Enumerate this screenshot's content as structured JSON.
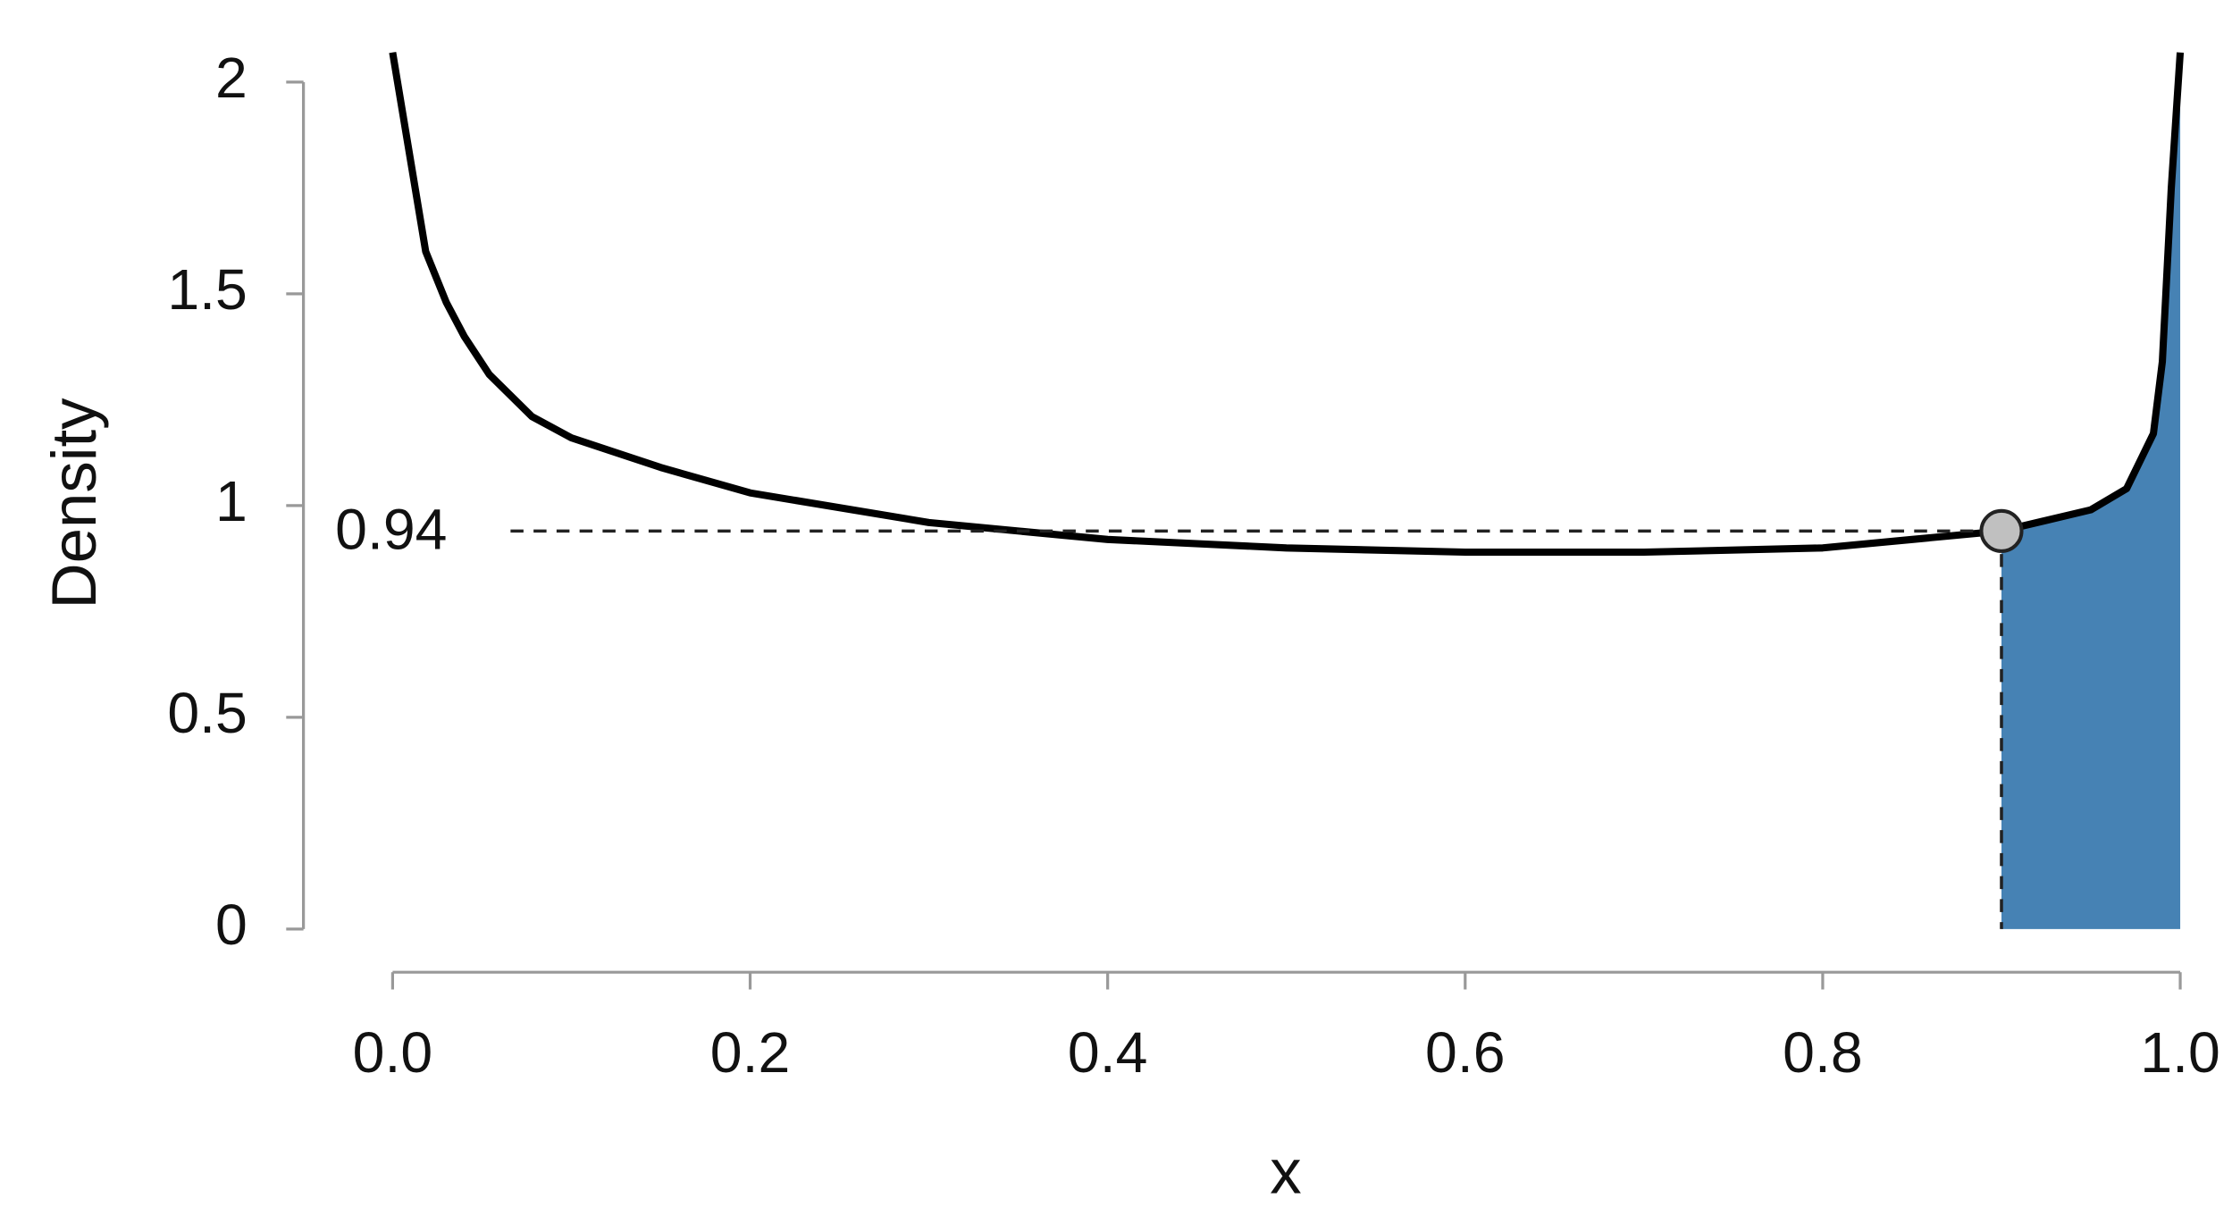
{
  "chart_data": {
    "type": "line",
    "x_label": "x",
    "y_label": "Density",
    "x": [
      0,
      0.0185,
      0.03,
      0.04,
      0.054,
      0.078,
      0.1,
      0.15,
      0.2,
      0.3,
      0.4,
      0.5,
      0.6,
      0.7,
      0.8,
      0.85,
      0.9,
      0.95,
      0.97,
      0.985,
      0.99,
      0.995,
      1
    ],
    "values": [
      2.07,
      1.6,
      1.48,
      1.4,
      1.31,
      1.21,
      1.16,
      1.09,
      1.03,
      0.96,
      0.92,
      0.9,
      0.89,
      0.89,
      0.9,
      0.92,
      0.94,
      0.99,
      1.04,
      1.17,
      1.34,
      1.75,
      2.07
    ],
    "color": "#000000",
    "shade_from": 0.9,
    "shade_color": "#4682b4",
    "point": {
      "x": 0.9,
      "y": 0.94
    },
    "point_color": "#c0c0c0",
    "xlim": [
      0,
      1
    ],
    "ylim": [
      0,
      2.07
    ],
    "xticks": [
      {
        "value": 0,
        "label": "0.0"
      },
      0.2,
      0.4,
      0.6,
      0.8,
      {
        "value": 1,
        "label": "1.0"
      }
    ],
    "yticks": [
      0,
      0.5,
      1,
      1.5,
      2
    ]
  }
}
